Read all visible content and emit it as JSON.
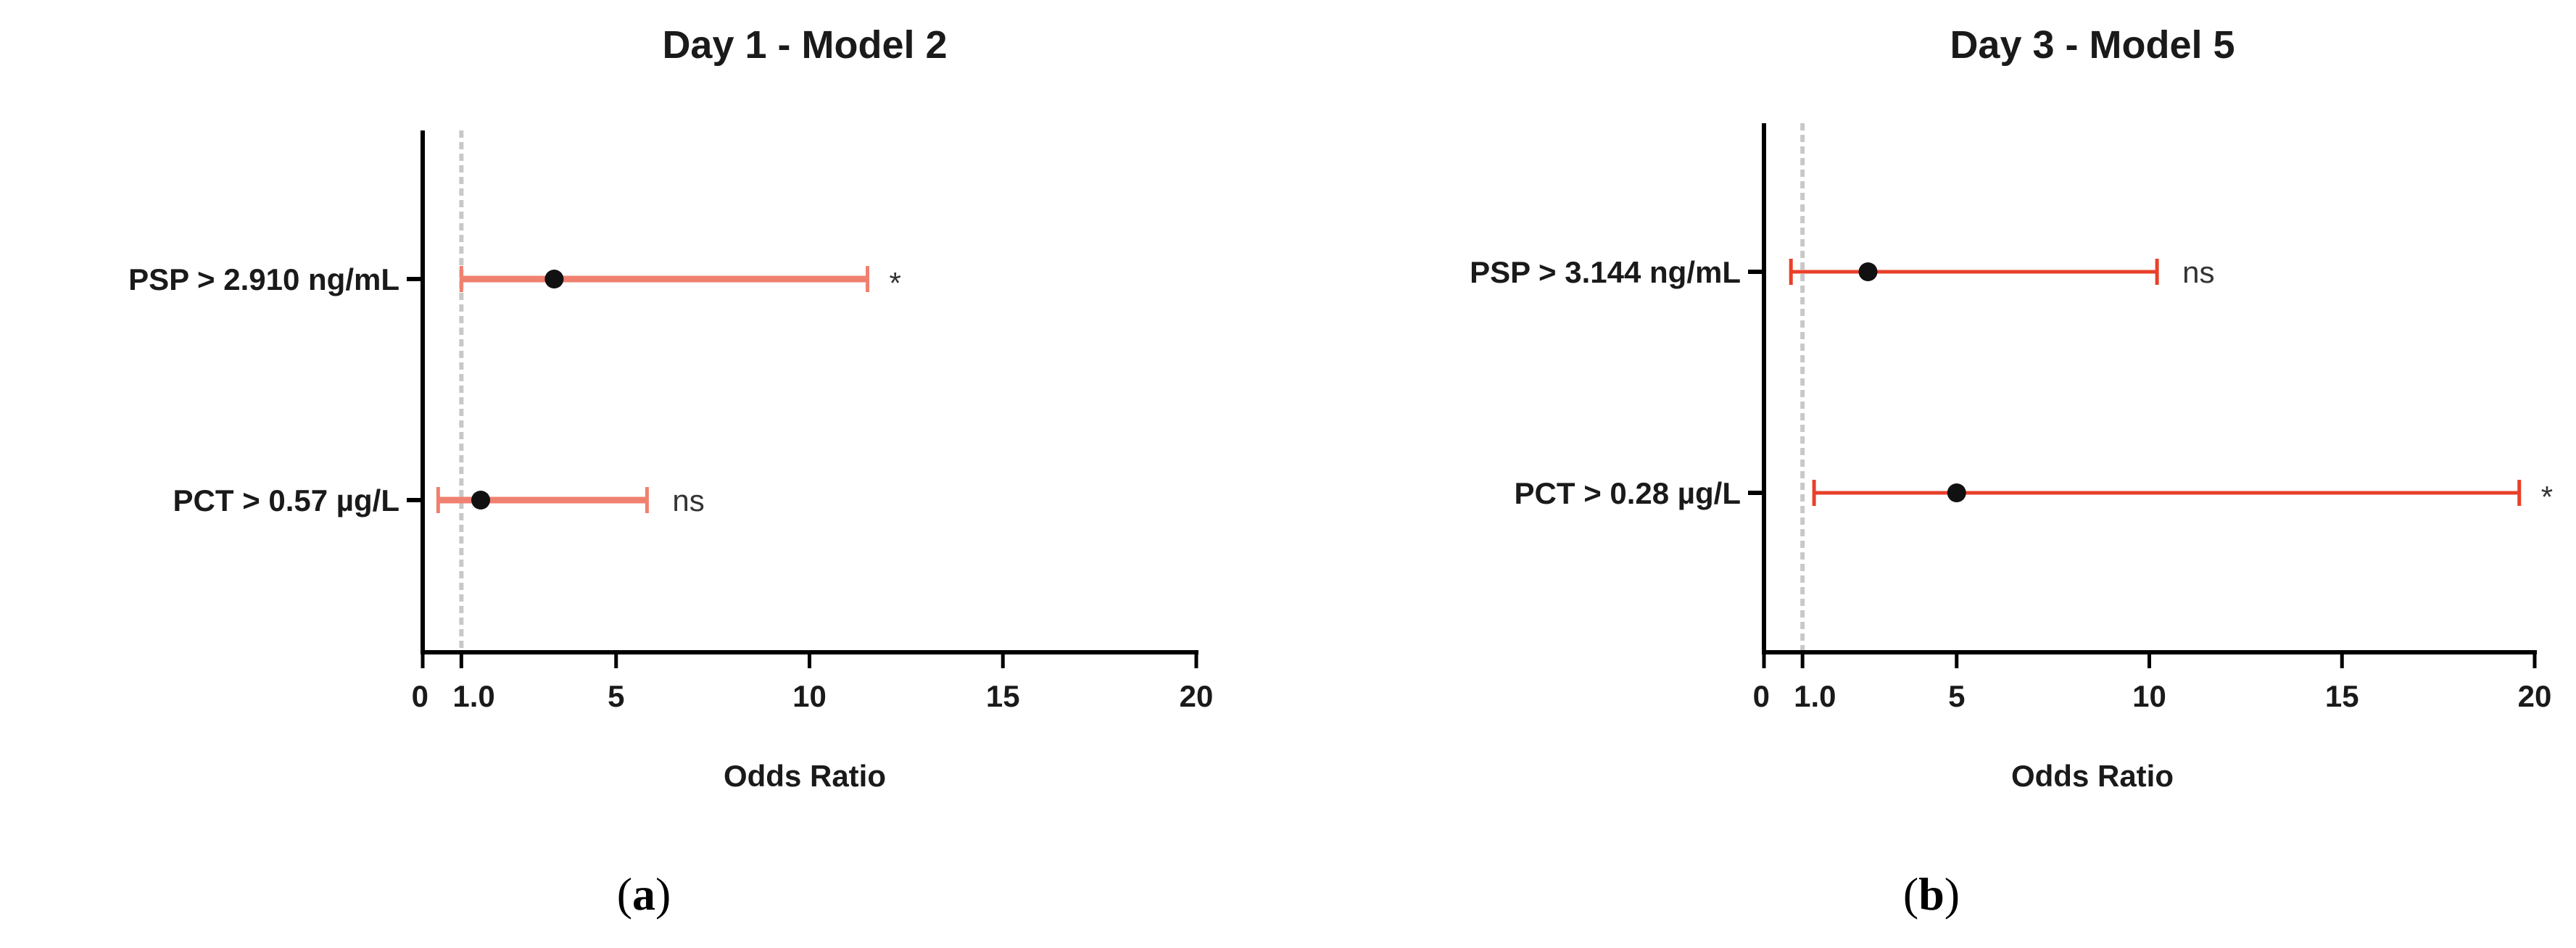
{
  "colors": {
    "ci_line_a": "#f0806f",
    "ci_line_b": "#e8402a",
    "point": "#111111",
    "ref_line": "#c8c8c8",
    "axis": "#000000"
  },
  "chart_data": [
    {
      "type": "forest",
      "title": "Day 1 - Model 2",
      "xlabel": "Odds Ratio",
      "xlim": [
        0,
        20
      ],
      "xticks": [
        {
          "value": 0,
          "label": "0"
        },
        {
          "value": 1,
          "label": "1.0"
        },
        {
          "value": 5,
          "label": "5"
        },
        {
          "value": 10,
          "label": "10"
        },
        {
          "value": 15,
          "label": "15"
        },
        {
          "value": 20,
          "label": "20"
        }
      ],
      "reference_line": 1.0,
      "caption": {
        "open": "(",
        "letter": "a",
        "close": ")"
      },
      "rows": [
        {
          "label": "PSP > 2.910 ng/mL",
          "or": 3.4,
          "ci_low": 1.0,
          "ci_high": 11.5,
          "annotation": "*"
        },
        {
          "label": "PCT > 0.57 µg/L",
          "or": 1.5,
          "ci_low": 0.4,
          "ci_high": 5.8,
          "annotation": "ns"
        }
      ]
    },
    {
      "type": "forest",
      "title": "Day 3 -  Model 5",
      "xlabel": "Odds Ratio",
      "xlim": [
        0,
        20
      ],
      "xticks": [
        {
          "value": 0,
          "label": "0"
        },
        {
          "value": 1,
          "label": "1.0"
        },
        {
          "value": 5,
          "label": "5"
        },
        {
          "value": 10,
          "label": "10"
        },
        {
          "value": 15,
          "label": "15"
        },
        {
          "value": 20,
          "label": "20"
        }
      ],
      "reference_line": 1.0,
      "caption": {
        "open": "(",
        "letter": "b",
        "close": ")"
      },
      "rows": [
        {
          "label": "PSP > 3.144 ng/mL",
          "or": 2.7,
          "ci_low": 0.7,
          "ci_high": 10.2,
          "annotation": "ns"
        },
        {
          "label": "PCT > 0.28 µg/L",
          "or": 5.0,
          "ci_low": 1.3,
          "ci_high": 19.6,
          "annotation": "*"
        }
      ]
    }
  ]
}
